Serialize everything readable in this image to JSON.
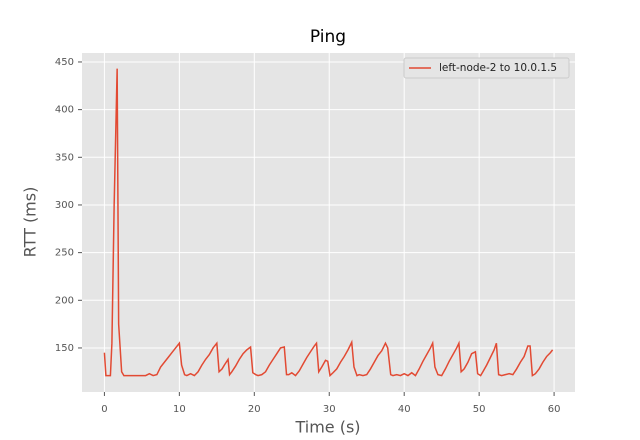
{
  "chart_data": {
    "type": "line",
    "title": "Ping",
    "xlabel": "Time (s)",
    "ylabel": "RTT (ms)",
    "x": [
      0,
      0.2,
      0.8,
      1.0,
      1.3,
      1.7,
      1.9,
      2.3,
      2.6,
      3,
      4,
      5,
      5.5,
      6,
      6.5,
      7,
      7.5,
      8,
      8.5,
      9,
      9.5,
      10,
      10.3,
      10.7,
      11,
      11.5,
      12,
      12.5,
      13,
      13.5,
      14,
      14.5,
      15,
      15.3,
      15.7,
      16,
      16.5,
      16.7,
      17,
      17.5,
      18,
      18.5,
      19,
      19.5,
      19.8,
      20.2,
      20.5,
      21,
      21.5,
      22,
      22.5,
      23,
      23.5,
      24,
      24.3,
      24.6,
      25,
      25.5,
      26,
      26.5,
      27,
      27.5,
      28,
      28.3,
      28.6,
      29,
      29.5,
      29.8,
      30.1,
      30.5,
      31,
      31.5,
      32,
      32.5,
      33,
      33.3,
      33.7,
      34,
      34.5,
      35,
      35.5,
      36,
      36.5,
      37,
      37.5,
      37.8,
      38.2,
      38.5,
      39,
      39.5,
      40,
      40.5,
      41,
      41.5,
      42,
      42.5,
      43,
      43.5,
      43.8,
      44.1,
      44.5,
      45,
      45.5,
      46,
      46.5,
      47,
      47.3,
      47.6,
      48,
      48.5,
      49,
      49.5,
      49.8,
      50.2,
      50.5,
      51,
      51.5,
      52,
      52.3,
      52.6,
      53,
      53.5,
      54,
      54.5,
      55,
      55.5,
      56,
      56.5,
      56.8,
      57.1,
      57.5,
      58,
      58.5,
      59,
      59.5,
      59.8
    ],
    "series": [
      {
        "name": "left-node-2 to 10.0.1.5",
        "color": "#E24A33",
        "values": [
          145,
          121,
          121,
          155,
          300,
          443,
          175,
          125,
          121,
          121,
          121,
          121,
          121,
          123,
          121,
          122,
          130,
          135,
          140,
          145,
          150,
          155,
          132,
          122,
          121,
          123,
          121,
          125,
          132,
          138,
          143,
          150,
          155,
          125,
          128,
          132,
          138,
          122,
          125,
          131,
          138,
          144,
          148,
          151,
          124,
          122,
          121,
          122,
          125,
          132,
          138,
          144,
          150,
          151,
          122,
          122,
          124,
          121,
          126,
          133,
          140,
          146,
          152,
          155,
          125,
          130,
          137,
          136,
          121,
          124,
          128,
          135,
          141,
          148,
          156,
          130,
          121,
          122,
          121,
          122,
          128,
          135,
          142,
          147,
          155,
          150,
          122,
          121,
          122,
          121,
          123,
          121,
          124,
          121,
          128,
          136,
          143,
          150,
          155,
          130,
          122,
          121,
          128,
          136,
          143,
          150,
          155,
          125,
          128,
          135,
          144,
          146,
          123,
          121,
          125,
          132,
          140,
          148,
          155,
          122,
          121,
          122,
          123,
          122,
          128,
          135,
          141,
          152,
          152,
          121,
          123,
          128,
          135,
          141,
          145,
          148
        ]
      }
    ],
    "xlim": [
      -2.99,
      62.79
    ],
    "ylim": [
      103.8,
      459.4
    ],
    "xticks": [
      0,
      10,
      20,
      30,
      40,
      50,
      60
    ],
    "yticks": [
      150,
      200,
      250,
      300,
      350,
      400,
      450
    ],
    "grid": true,
    "legend": "upper right"
  }
}
